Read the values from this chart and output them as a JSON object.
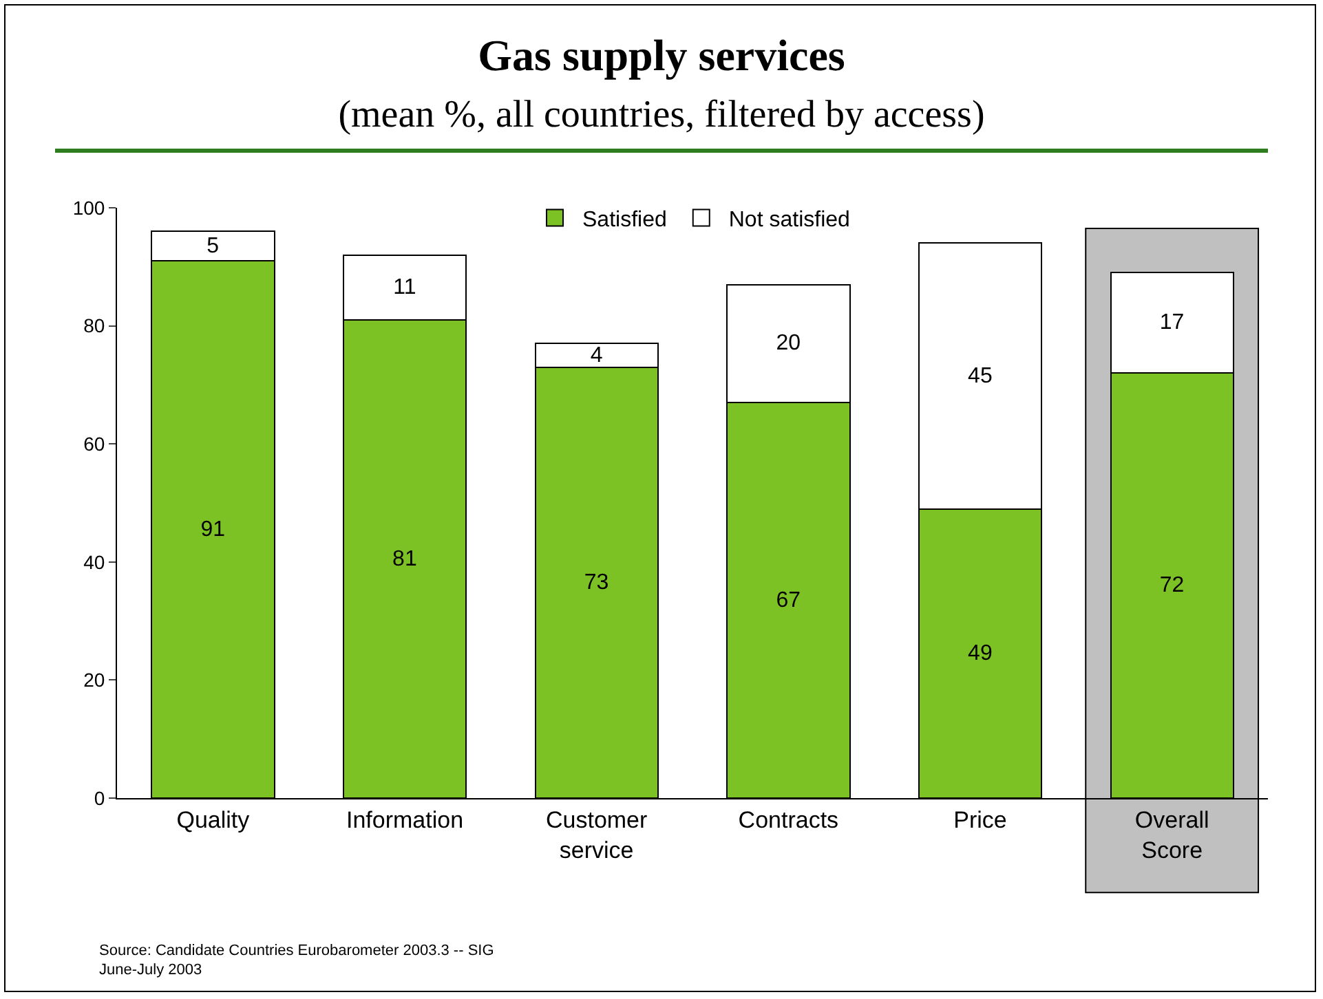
{
  "chart_data": {
    "type": "bar",
    "title": "Gas supply services",
    "subtitle": "(mean %, all countries, filtered by access)",
    "categories": [
      "Quality",
      "Information",
      "Customer service",
      "Contracts",
      "Price",
      "Overall Score"
    ],
    "series": [
      {
        "name": "Satisfied",
        "color": "#7dc225",
        "values": [
          91,
          81,
          73,
          67,
          49,
          72
        ]
      },
      {
        "name": "Not satisfied",
        "color": "#ffffff",
        "values": [
          5,
          11,
          4,
          20,
          45,
          17
        ]
      }
    ],
    "stacked": true,
    "data_labels": true,
    "ylim": [
      0,
      100
    ],
    "yticks": [
      0,
      20,
      40,
      60,
      80,
      100
    ],
    "grid": false,
    "legend": "top",
    "bands": [
      {
        "axis": "x",
        "from": "Overall Score",
        "to": "Overall Score",
        "color": "#c0c0c0"
      }
    ],
    "annotations": [
      "Source: Candidate Countries Eurobarometer 2003.3 -- SIG\nJune-July 2003"
    ]
  }
}
